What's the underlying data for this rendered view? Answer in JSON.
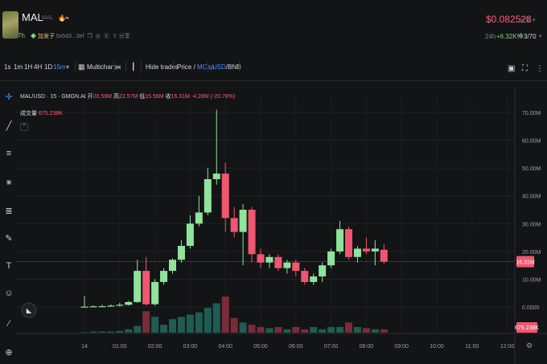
{
  "header": {
    "symbol": "MAL",
    "symbol_sub": "MAL",
    "age": "7h",
    "tag": "加发子",
    "address": "0x5d3...3ef",
    "share_label": "分享",
    "price": "$0.082528",
    "share_right": "分享 ▾",
    "change_label": "24h",
    "change": "+6.32K%",
    "holders": "3/70",
    "more": "▾"
  },
  "toolbar": {
    "intervals": [
      "1s",
      "1m",
      "1H",
      "4H",
      "1D",
      "15m"
    ],
    "active_interval": "15m",
    "multicharts": "Multicharts",
    "hide_trades": "Hide trades",
    "price_label": "Price",
    "mcap_label": "MCap",
    "slash": "/",
    "usd_label": "USD",
    "bnb_label": "BNB"
  },
  "legend": {
    "pair": "MAL/USD · 15 · GMGN.AI",
    "o_label": "开",
    "o": "20.59M",
    "h_label": "高",
    "h": "22.57M",
    "l_label": "低",
    "l": "15.56M",
    "c_label": "收",
    "c": "16.31M",
    "chg": "-4.28M (-20.78%)",
    "vol_label": "成交量",
    "vol": "675.238K",
    "collapse": "^"
  },
  "icons": {
    "flame": "flame-icon",
    "leaf": "leaf-icon",
    "camera": "camera-icon",
    "fullscreen": "fullscreen-icon",
    "more": "more-vertical-icon"
  },
  "colors": {
    "up": "#8fe39b",
    "down": "#f0566f",
    "vol_up": "#1f5c52",
    "vol_down": "#7a2b3a",
    "accent": "#4c8dff",
    "price_line": "#c4475e"
  },
  "chart_data": {
    "type": "candlestick",
    "interval": "15m",
    "y_axis_unit": "market cap (USD)",
    "y_ticks": [
      "70.00M",
      "60.00M",
      "50.00M",
      "40.00M",
      "30.00M",
      "20.00M",
      "10.00M",
      "0.0000"
    ],
    "y_tick_values": [
      70,
      60,
      50,
      40,
      30,
      20,
      10,
      0
    ],
    "ylim": [
      -2,
      72
    ],
    "x_ticks": [
      "14",
      "01:00",
      "02:00",
      "03:00",
      "04:00",
      "05:00",
      "06:00",
      "07:00",
      "08:00",
      "09:00",
      "10:00",
      "11:00",
      "12:00"
    ],
    "current_price_label": "16.31M",
    "current_price": 16.31,
    "current_volume_label": "675.238K",
    "candles": [
      {
        "t": 0.0,
        "o": 0.1,
        "h": 4.0,
        "l": 0.0,
        "c": 0.15
      },
      {
        "t": 0.25,
        "o": 0.15,
        "h": 0.6,
        "l": 0.0,
        "c": 0.25
      },
      {
        "t": 0.5,
        "o": 0.25,
        "h": 0.8,
        "l": 0.1,
        "c": 0.3
      },
      {
        "t": 0.75,
        "o": 0.3,
        "h": 0.9,
        "l": 0.1,
        "c": 0.5
      },
      {
        "t": 1.0,
        "o": 0.5,
        "h": 1.5,
        "l": 0.2,
        "c": 0.8
      },
      {
        "t": 1.25,
        "o": 0.8,
        "h": 2.2,
        "l": 0.5,
        "c": 1.8
      },
      {
        "t": 1.5,
        "o": 1.8,
        "h": 17.0,
        "l": 1.5,
        "c": 13.0
      },
      {
        "t": 1.75,
        "o": 13.0,
        "h": 18.0,
        "l": 0.5,
        "c": 1.0
      },
      {
        "t": 2.0,
        "o": 1.0,
        "h": 10.0,
        "l": 0.5,
        "c": 9.0
      },
      {
        "t": 2.25,
        "o": 9.0,
        "h": 14.0,
        "l": 8.0,
        "c": 13.0
      },
      {
        "t": 2.5,
        "o": 13.0,
        "h": 17.5,
        "l": 12.0,
        "c": 17.0
      },
      {
        "t": 2.75,
        "o": 17.0,
        "h": 24.0,
        "l": 16.0,
        "c": 22.0
      },
      {
        "t": 3.0,
        "o": 22.0,
        "h": 33.0,
        "l": 21.0,
        "c": 30.0
      },
      {
        "t": 3.25,
        "o": 30.0,
        "h": 40.0,
        "l": 29.0,
        "c": 34.0
      },
      {
        "t": 3.5,
        "o": 34.0,
        "h": 50.0,
        "l": 33.0,
        "c": 46.0
      },
      {
        "t": 3.75,
        "o": 46.0,
        "h": 71.0,
        "l": 44.0,
        "c": 48.0
      },
      {
        "t": 4.0,
        "o": 48.0,
        "h": 52.0,
        "l": 27.0,
        "c": 32.0
      },
      {
        "t": 4.25,
        "o": 32.0,
        "h": 36.0,
        "l": 25.0,
        "c": 27.0
      },
      {
        "t": 4.5,
        "o": 27.0,
        "h": 37.0,
        "l": 15.0,
        "c": 35.0
      },
      {
        "t": 4.75,
        "o": 35.0,
        "h": 36.0,
        "l": 16.0,
        "c": 19.0
      },
      {
        "t": 5.0,
        "o": 19.0,
        "h": 21.0,
        "l": 14.0,
        "c": 16.0
      },
      {
        "t": 5.25,
        "o": 16.0,
        "h": 19.0,
        "l": 14.0,
        "c": 18.0
      },
      {
        "t": 5.5,
        "o": 18.0,
        "h": 19.0,
        "l": 13.0,
        "c": 14.0
      },
      {
        "t": 5.75,
        "o": 14.0,
        "h": 17.0,
        "l": 12.0,
        "c": 16.0
      },
      {
        "t": 6.0,
        "o": 16.0,
        "h": 17.0,
        "l": 11.0,
        "c": 13.0
      },
      {
        "t": 6.25,
        "o": 13.0,
        "h": 14.0,
        "l": 8.0,
        "c": 9.0
      },
      {
        "t": 6.5,
        "o": 9.0,
        "h": 12.0,
        "l": 8.0,
        "c": 11.0
      },
      {
        "t": 6.75,
        "o": 11.0,
        "h": 16.0,
        "l": 9.0,
        "c": 15.0
      },
      {
        "t": 7.0,
        "o": 15.0,
        "h": 21.0,
        "l": 14.0,
        "c": 20.0
      },
      {
        "t": 7.25,
        "o": 20.0,
        "h": 31.0,
        "l": 19.0,
        "c": 28.0
      },
      {
        "t": 7.5,
        "o": 28.0,
        "h": 29.0,
        "l": 17.0,
        "c": 18.0
      },
      {
        "t": 7.75,
        "o": 18.0,
        "h": 22.0,
        "l": 16.0,
        "c": 21.0
      },
      {
        "t": 8.0,
        "o": 21.0,
        "h": 25.0,
        "l": 19.0,
        "c": 20.0
      },
      {
        "t": 8.25,
        "o": 20.0,
        "h": 24.0,
        "l": 15.0,
        "c": 21.0
      },
      {
        "t": 8.5,
        "o": 20.59,
        "h": 22.57,
        "l": 15.56,
        "c": 16.31
      }
    ],
    "volumes": [
      0.05,
      0.1,
      0.1,
      0.1,
      0.15,
      0.3,
      0.6,
      1.9,
      1.4,
      0.7,
      1.2,
      1.4,
      1.6,
      1.8,
      2.2,
      2.6,
      3.2,
      1.3,
      0.9,
      0.7,
      0.5,
      0.4,
      0.5,
      0.3,
      0.5,
      0.3,
      0.5,
      0.3,
      0.5,
      0.5,
      0.9,
      0.5,
      0.4,
      0.3,
      0.3
    ],
    "volume_up": [
      true,
      true,
      true,
      true,
      true,
      true,
      true,
      false,
      true,
      true,
      true,
      true,
      true,
      true,
      true,
      true,
      false,
      false,
      true,
      false,
      false,
      true,
      false,
      true,
      false,
      false,
      true,
      true,
      true,
      true,
      false,
      true,
      false,
      true,
      false
    ]
  }
}
